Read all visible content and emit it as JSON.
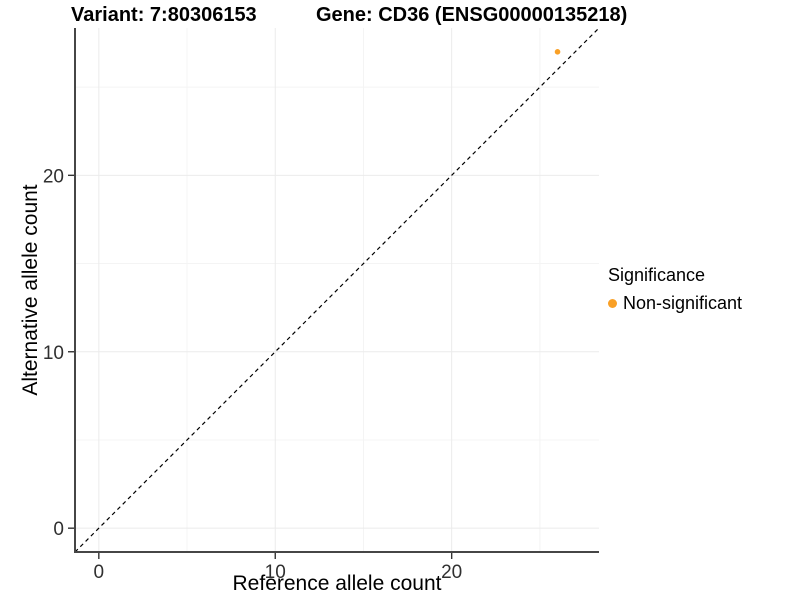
{
  "titles": {
    "variant": "Variant: 7:80306153",
    "gene": "Gene: CD36 (ENSG00000135218)"
  },
  "legend": {
    "title": "Significance",
    "items": [
      {
        "label": "Non-significant",
        "color": "#F9A026"
      }
    ]
  },
  "chart_data": {
    "type": "scatter",
    "title": "",
    "xlabel": "Reference allele count",
    "ylabel": "Alternative allele count",
    "xlim": [
      -1.35,
      28.35
    ],
    "ylim": [
      -1.35,
      28.35
    ],
    "x_ticks": [
      0,
      10,
      20
    ],
    "y_ticks": [
      0,
      10,
      20
    ],
    "major_gridlines": [
      0,
      10,
      20
    ],
    "minor_gridlines": [
      5,
      15,
      25
    ],
    "grid": true,
    "legend_position": "right",
    "reference_line": {
      "type": "identity",
      "slope": 1,
      "intercept": 0,
      "style": "dashed",
      "color": "#000000"
    },
    "series": [
      {
        "name": "Non-significant",
        "color": "#F9A026",
        "points": [
          {
            "x": 26,
            "y": 27
          }
        ]
      }
    ],
    "colors": {
      "axis_line": "#464646",
      "tick_mark": "#333333",
      "major_grid": "#EBEBEB",
      "minor_grid": "#F4F4F4",
      "background": "#FFFFFF"
    }
  }
}
